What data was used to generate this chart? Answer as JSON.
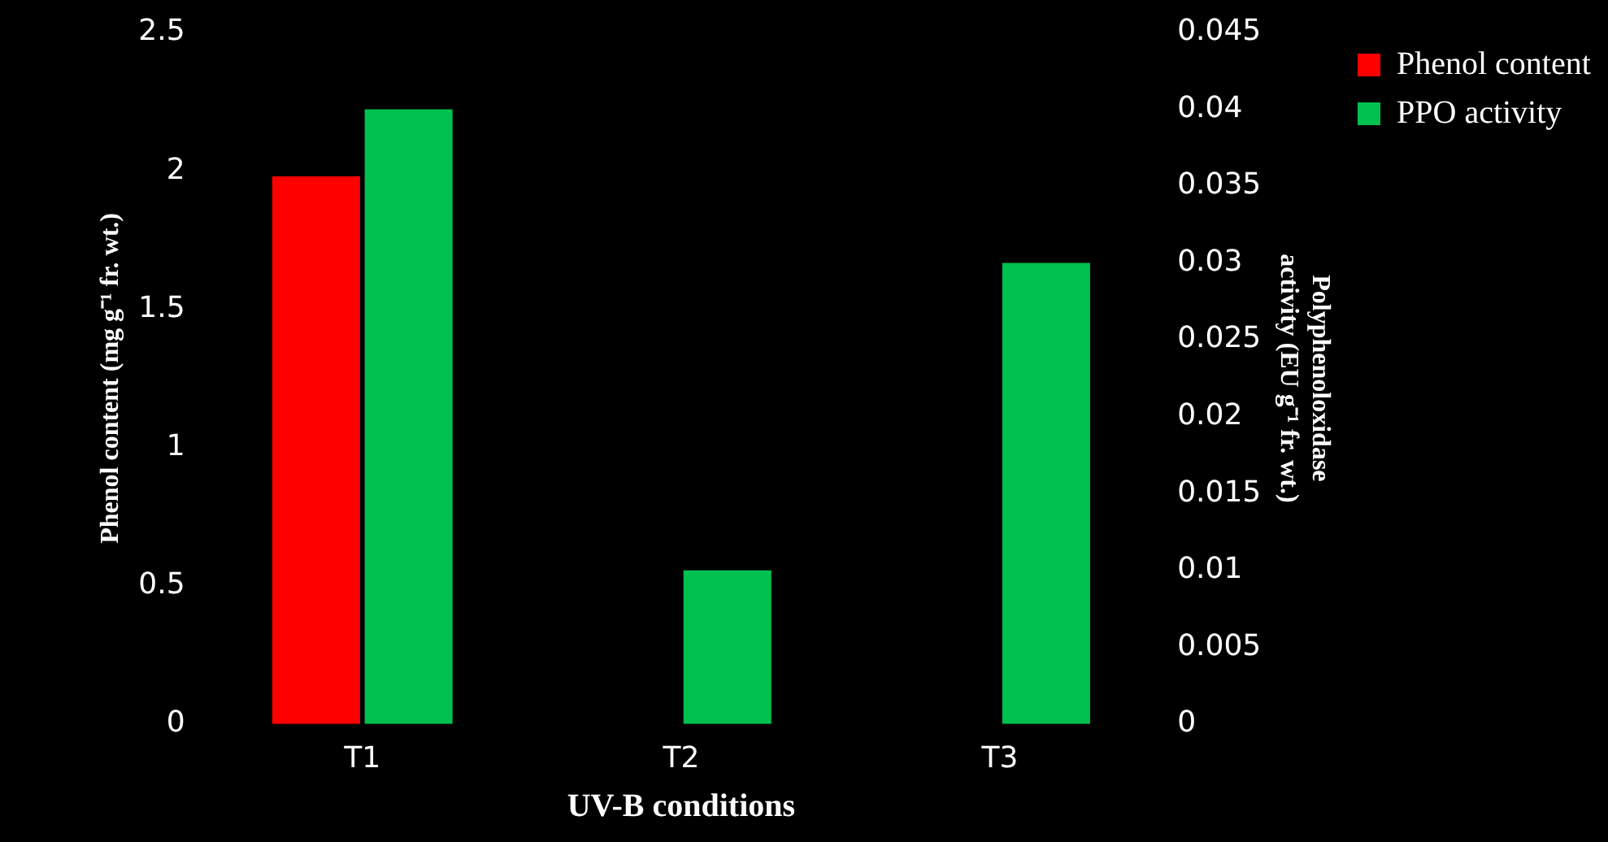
{
  "chart_data": {
    "type": "bar",
    "xlabel": "UV-B conditions",
    "ylabel": "Phenol content (mg g⁻¹ fr. wt.)",
    "y2label": "Polyphenoloxidase activity (EU g⁻¹ fr. wt.)",
    "categories": [
      "T1",
      "T2",
      "T3"
    ],
    "series": [
      {
        "name": "Phenol content",
        "color": "#ff0000",
        "values": [
          1.98,
          0,
          0
        ]
      },
      {
        "name": "PPO activity",
        "color": "#00c050",
        "values": [
          0.04,
          0.01,
          0.03
        ],
        "axis": "y2"
      }
    ],
    "ylim": [
      0,
      2.5
    ],
    "yticks": [
      0,
      0.5,
      1,
      1.5,
      2,
      2.5
    ],
    "y2lim": [
      0,
      0.045
    ],
    "y2ticks": [
      0,
      0.005,
      0.01,
      0.015,
      0.02,
      0.025,
      0.03,
      0.035,
      0.04,
      0.045
    ],
    "grid": false,
    "legend": "top right"
  }
}
